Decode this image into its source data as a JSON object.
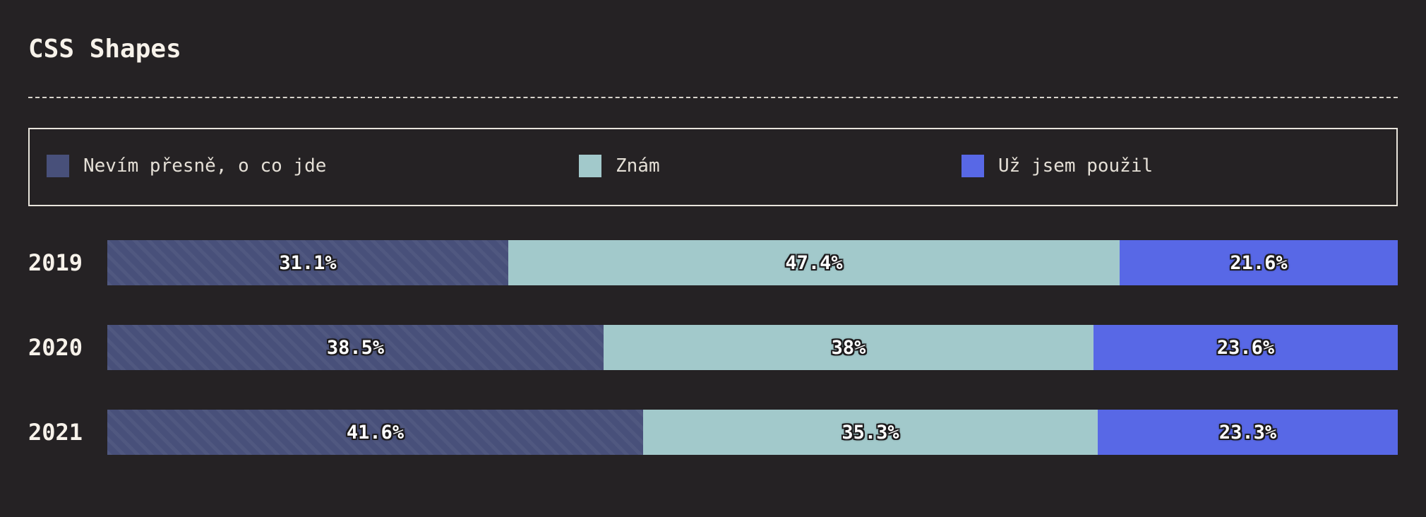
{
  "chart_data": {
    "type": "bar",
    "stacked": true,
    "orientation": "horizontal",
    "title": "CSS Shapes",
    "categories": [
      "2019",
      "2020",
      "2021"
    ],
    "series": [
      {
        "name": "Nevím přesně, o co jde",
        "color": "#48507a",
        "pattern": "diagonal-stripes",
        "values": [
          31.1,
          38.5,
          41.6
        ],
        "labels": [
          "31.1%",
          "38.5%",
          "41.6%"
        ]
      },
      {
        "name": "Znám",
        "color": "#a2c9cb",
        "values": [
          47.4,
          38,
          35.3
        ],
        "labels": [
          "47.4%",
          "38%",
          "35.3%"
        ]
      },
      {
        "name": "Už jsem použil",
        "color": "#5868e6",
        "values": [
          21.6,
          23.6,
          23.3
        ],
        "labels": [
          "21.6%",
          "23.6%",
          "23.3%"
        ]
      }
    ],
    "unit": "%",
    "legend_position": "top"
  },
  "colors": {
    "background": "#252224",
    "text": "#f7f2ea",
    "legend_text": "#e4dfd6"
  }
}
